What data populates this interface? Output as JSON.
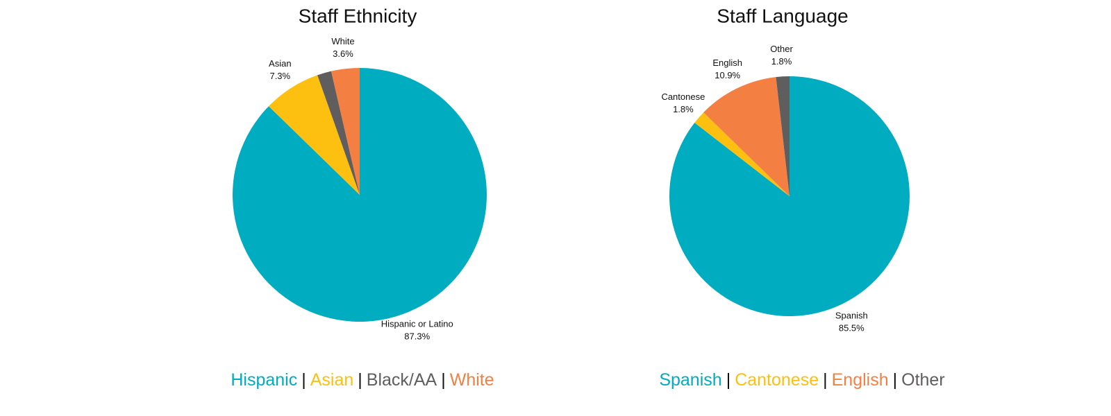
{
  "chart_data": [
    {
      "type": "pie",
      "title": "Staff Ethnicity",
      "categories": [
        "Hispanic or Latino",
        "Asian",
        null,
        "White"
      ],
      "values": [
        87.3,
        7.3,
        1.8,
        3.6
      ],
      "value_labels": [
        "87.3%",
        "7.3%",
        null,
        "3.6%"
      ],
      "colors": [
        "#00acbf",
        "#fdbf10",
        "#5f5d5e",
        "#f47f42"
      ],
      "legend": [
        "Hispanic",
        "Asian",
        "Black/AA",
        "White"
      ]
    },
    {
      "type": "pie",
      "title": "Staff Language",
      "categories": [
        "Spanish",
        "Cantonese",
        "English",
        "Other"
      ],
      "values": [
        85.5,
        1.8,
        10.9,
        1.8
      ],
      "value_labels": [
        "85.5%",
        "1.8%",
        "10.9%",
        "1.8%"
      ],
      "colors": [
        "#00acbf",
        "#fdbf10",
        "#f47f42",
        "#5f5d5e"
      ],
      "legend": [
        "Spanish",
        "Cantonese",
        "English",
        "Other"
      ]
    }
  ]
}
